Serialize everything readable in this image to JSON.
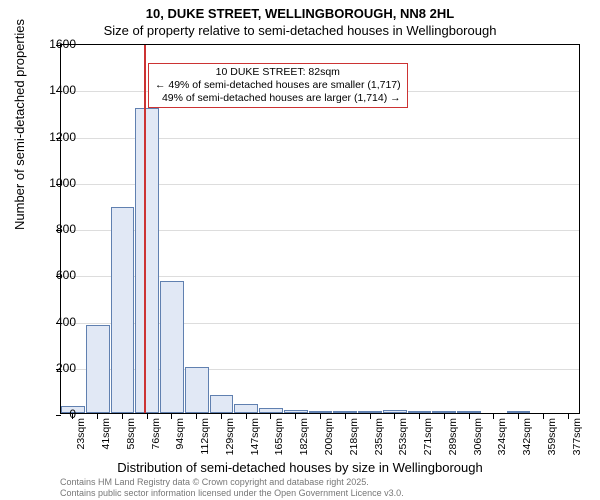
{
  "title_line1": "10, DUKE STREET, WELLINGBOROUGH, NN8 2HL",
  "title_line2": "Size of property relative to semi-detached houses in Wellingborough",
  "ylabel": "Number of semi-detached properties",
  "xlabel": "Distribution of semi-detached houses by size in Wellingborough",
  "footer_line1": "Contains HM Land Registry data © Crown copyright and database right 2025.",
  "footer_line2": "Contains public sector information licensed under the Open Government Licence v3.0.",
  "chart": {
    "type": "histogram",
    "background_color": "#ffffff",
    "grid_color": "#dddddd",
    "axis_color": "#000000",
    "bar_fill": "#e1e8f5",
    "bar_stroke": "#6080b0",
    "label_fontsize": 13,
    "tick_fontsize": 11,
    "ylim": [
      0,
      1600
    ],
    "yticks": [
      0,
      200,
      400,
      600,
      800,
      1000,
      1200,
      1400,
      1600
    ],
    "xtick_labels": [
      "23sqm",
      "41sqm",
      "58sqm",
      "76sqm",
      "94sqm",
      "112sqm",
      "129sqm",
      "147sqm",
      "165sqm",
      "182sqm",
      "200sqm",
      "218sqm",
      "235sqm",
      "253sqm",
      "271sqm",
      "289sqm",
      "306sqm",
      "324sqm",
      "342sqm",
      "359sqm",
      "377sqm"
    ],
    "bars": [
      30,
      380,
      890,
      1320,
      570,
      200,
      80,
      40,
      20,
      15,
      10,
      8,
      6,
      15,
      4,
      3,
      2,
      0,
      2,
      0,
      0
    ],
    "marker": {
      "position_index": 3.35,
      "color": "#cc3333",
      "callout_border": "#cc3333",
      "line1": "10 DUKE STREET: 82sqm",
      "line2": "← 49% of semi-detached houses are smaller (1,717)",
      "line3": "49% of semi-detached houses are larger (1,714) →"
    }
  }
}
